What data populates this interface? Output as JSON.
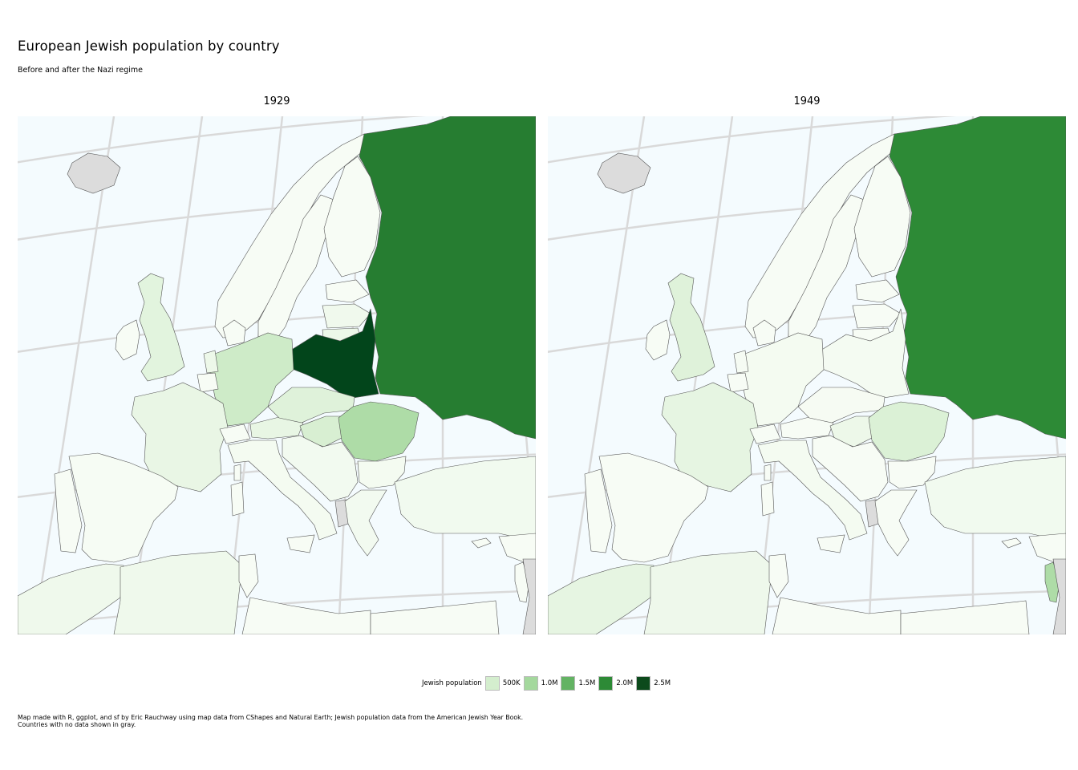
{
  "title": "European Jewish population by country",
  "subtitle": "Before and after the Nazi regime",
  "panels": [
    {
      "label": "1929",
      "shading": {
        "USSR": 2.1,
        "Poland": 3.1,
        "Romania": 0.9,
        "Germany": 0.56,
        "Hungary": 0.45,
        "Czechoslovakia": 0.35,
        "Lithuania": 0.16,
        "Latvia": 0.1,
        "United Kingdom": 0.3,
        "France": 0.2,
        "Austria": 0.22,
        "Netherlands": 0.15,
        "Italy": 0.05,
        "Spain": 0.01,
        "Yugoslavia": 0.07,
        "Bulgaria": 0.05,
        "Greece": 0.07,
        "Turkey": 0.08,
        "Morocco": 0.12,
        "Algeria": 0.11
      }
    },
    {
      "label": "1949",
      "shading": {
        "USSR": 2.0,
        "Romania": 0.4,
        "Israel": 0.9,
        "United Kingdom": 0.35,
        "France": 0.24,
        "Morocco": 0.25,
        "Hungary": 0.15,
        "Algeria": 0.13,
        "Germany": 0.05,
        "Poland": 0.04,
        "Czechoslovakia": 0.02,
        "Italy": 0.05,
        "Netherlands": 0.03,
        "Turkey": 0.08
      }
    }
  ],
  "legend": {
    "title": "Jewish population",
    "breaks": [
      {
        "label": "500K",
        "color": "#d4eece"
      },
      {
        "label": "1.0M",
        "color": "#a4d89d"
      },
      {
        "label": "1.5M",
        "color": "#63b363"
      },
      {
        "label": "2.0M",
        "color": "#2d8a36"
      },
      {
        "label": "2.5M",
        "color": "#0c4a1c"
      }
    ]
  },
  "caption": {
    "line1": "Map made with R, ggplot, and sf by Eric Rauchway using map data from CShapes and Natural Earth; Jewish population data from the American Jewish Year Book.",
    "line2": "Countries with no data shown in gray."
  },
  "colors": {
    "sea": "#f4fbfe",
    "graticule": "#d9d9d9",
    "no_data": "#dcdcdc",
    "border": "#555555",
    "low": "#f7fcf5",
    "high": "#00441b"
  }
}
